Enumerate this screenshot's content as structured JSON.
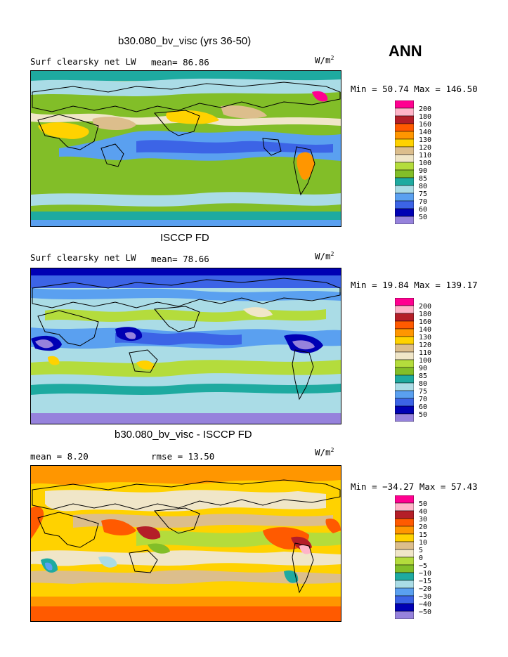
{
  "season": "ANN",
  "units_base": "W/m",
  "units_sup": "2",
  "palette": [
    "#ff0090",
    "#ffb4c8",
    "#b41e28",
    "#ff5a00",
    "#ff9600",
    "#ffd200",
    "#ffff00",
    "#dcbe8c",
    "#f0e6c8",
    "#b4dc3c",
    "#82be28",
    "#1eaaa0",
    "#aadce6",
    "#5aa0f0",
    "#3c64e6",
    "#0000b4",
    "#9682dc"
  ],
  "panels": [
    {
      "title": "b30.080_bv_visc (yrs 36-50)",
      "left_label": "Surf clearsky net LW",
      "mid_label": "mean=  86.86",
      "minmax": "Min =  50.74 Max = 146.50",
      "legend_labels": [
        "200",
        "180",
        "160",
        "140",
        "130",
        "120",
        "110",
        "100",
        "90",
        "85",
        "80",
        "75",
        "70",
        "60",
        "50"
      ]
    },
    {
      "title": "ISCCP FD",
      "left_label": "Surf clearsky net LW",
      "mid_label": "mean=  78.66",
      "minmax": "Min =  19.84 Max = 139.17",
      "legend_labels": [
        "200",
        "180",
        "160",
        "140",
        "130",
        "120",
        "110",
        "100",
        "90",
        "85",
        "80",
        "75",
        "70",
        "60",
        "50"
      ]
    },
    {
      "title": "b30.080_bv_visc - ISCCP FD",
      "left_label": "mean =    8.20",
      "mid_label": "rmse =   13.50",
      "minmax": "Min = −34.27 Max =  57.43",
      "legend_labels": [
        "50",
        "40",
        "30",
        "20",
        "15",
        "10",
        "5",
        "0",
        "−5",
        "−10",
        "−15",
        "−20",
        "−30",
        "−40",
        "−50"
      ]
    }
  ],
  "chart_data": [
    {
      "type": "heatmap",
      "title": "b30.080_bv_visc (yrs 36-50)",
      "variable": "Surf clearsky net LW",
      "units": "W/m2",
      "mean": 86.86,
      "min": 50.74,
      "max": 146.5,
      "contour_levels": [
        50,
        60,
        70,
        75,
        80,
        85,
        90,
        100,
        110,
        120,
        130,
        140,
        160,
        180,
        200
      ]
    },
    {
      "type": "heatmap",
      "title": "ISCCP FD",
      "variable": "Surf clearsky net LW",
      "units": "W/m2",
      "mean": 78.66,
      "min": 19.84,
      "max": 139.17,
      "contour_levels": [
        50,
        60,
        70,
        75,
        80,
        85,
        90,
        100,
        110,
        120,
        130,
        140,
        160,
        180,
        200
      ]
    },
    {
      "type": "heatmap",
      "title": "b30.080_bv_visc - ISCCP FD",
      "units": "W/m2",
      "mean": 8.2,
      "rmse": 13.5,
      "min": -34.27,
      "max": 57.43,
      "contour_levels": [
        -50,
        -40,
        -30,
        -20,
        -15,
        -10,
        -5,
        0,
        5,
        10,
        15,
        20,
        30,
        40,
        50
      ]
    }
  ]
}
